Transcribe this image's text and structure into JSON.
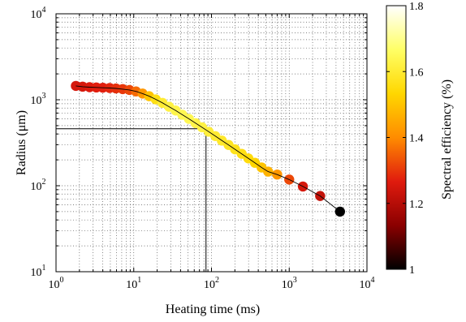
{
  "chart_data": {
    "type": "scatter",
    "title": "",
    "xlabel": "Heating time (ms)",
    "ylabel": "Radius (μm)",
    "xscale": "log",
    "yscale": "log",
    "xlim": [
      1,
      10000
    ],
    "ylim": [
      10,
      10000
    ],
    "x_ticks": [
      {
        "base": "10",
        "exp": "0",
        "value": 1
      },
      {
        "base": "10",
        "exp": "1",
        "value": 10
      },
      {
        "base": "10",
        "exp": "2",
        "value": 100
      },
      {
        "base": "10",
        "exp": "3",
        "value": 1000
      },
      {
        "base": "10",
        "exp": "4",
        "value": 10000
      }
    ],
    "y_ticks": [
      {
        "base": "10",
        "exp": "1",
        "value": 10
      },
      {
        "base": "10",
        "exp": "2",
        "value": 100
      },
      {
        "base": "10",
        "exp": "3",
        "value": 1000
      },
      {
        "base": "10",
        "exp": "4",
        "value": 10000
      }
    ],
    "grid": "dotted, major and minor",
    "colorbar": {
      "label": "Spectral efficiency (%)",
      "range": [
        1,
        1.8
      ],
      "ticks": [
        "1",
        "1.2",
        "1.4",
        "1.6",
        "1.8"
      ],
      "colormap": [
        "#000000",
        "#8b0000",
        "#e01b0e",
        "#ff8c00",
        "#ffd700",
        "#ffff66",
        "#ffffff"
      ]
    },
    "reference_point": {
      "x": 85,
      "y": 460
    },
    "points": [
      {
        "x": 1.8,
        "y": 1450,
        "c": 1.25
      },
      {
        "x": 2.2,
        "y": 1420,
        "c": 1.25
      },
      {
        "x": 2.7,
        "y": 1400,
        "c": 1.26
      },
      {
        "x": 3.3,
        "y": 1390,
        "c": 1.27
      },
      {
        "x": 4.0,
        "y": 1380,
        "c": 1.27
      },
      {
        "x": 4.9,
        "y": 1370,
        "c": 1.28
      },
      {
        "x": 5.9,
        "y": 1355,
        "c": 1.29
      },
      {
        "x": 7.2,
        "y": 1330,
        "c": 1.3
      },
      {
        "x": 8.8,
        "y": 1300,
        "c": 1.32
      },
      {
        "x": 10.7,
        "y": 1250,
        "c": 1.36
      },
      {
        "x": 13,
        "y": 1180,
        "c": 1.42
      },
      {
        "x": 15.8,
        "y": 1100,
        "c": 1.5
      },
      {
        "x": 19.2,
        "y": 1010,
        "c": 1.56
      },
      {
        "x": 23.4,
        "y": 920,
        "c": 1.6
      },
      {
        "x": 28.5,
        "y": 830,
        "c": 1.62
      },
      {
        "x": 34.6,
        "y": 750,
        "c": 1.63
      },
      {
        "x": 42.1,
        "y": 670,
        "c": 1.64
      },
      {
        "x": 51.2,
        "y": 600,
        "c": 1.64
      },
      {
        "x": 62.3,
        "y": 535,
        "c": 1.63
      },
      {
        "x": 75.7,
        "y": 478,
        "c": 1.62
      },
      {
        "x": 92.1,
        "y": 425,
        "c": 1.61
      },
      {
        "x": 112,
        "y": 378,
        "c": 1.6
      },
      {
        "x": 136,
        "y": 335,
        "c": 1.59
      },
      {
        "x": 166,
        "y": 298,
        "c": 1.58
      },
      {
        "x": 201,
        "y": 265,
        "c": 1.57
      },
      {
        "x": 245,
        "y": 235,
        "c": 1.56
      },
      {
        "x": 298,
        "y": 208,
        "c": 1.55
      },
      {
        "x": 362,
        "y": 185,
        "c": 1.53
      },
      {
        "x": 441,
        "y": 163,
        "c": 1.5
      },
      {
        "x": 536,
        "y": 146,
        "c": 1.47
      },
      {
        "x": 700,
        "y": 135,
        "c": 1.42
      },
      {
        "x": 1000,
        "y": 118,
        "c": 1.32
      },
      {
        "x": 1500,
        "y": 98,
        "c": 1.25
      },
      {
        "x": 2500,
        "y": 76,
        "c": 1.22
      },
      {
        "x": 4500,
        "y": 50,
        "c": 1.0
      }
    ]
  }
}
